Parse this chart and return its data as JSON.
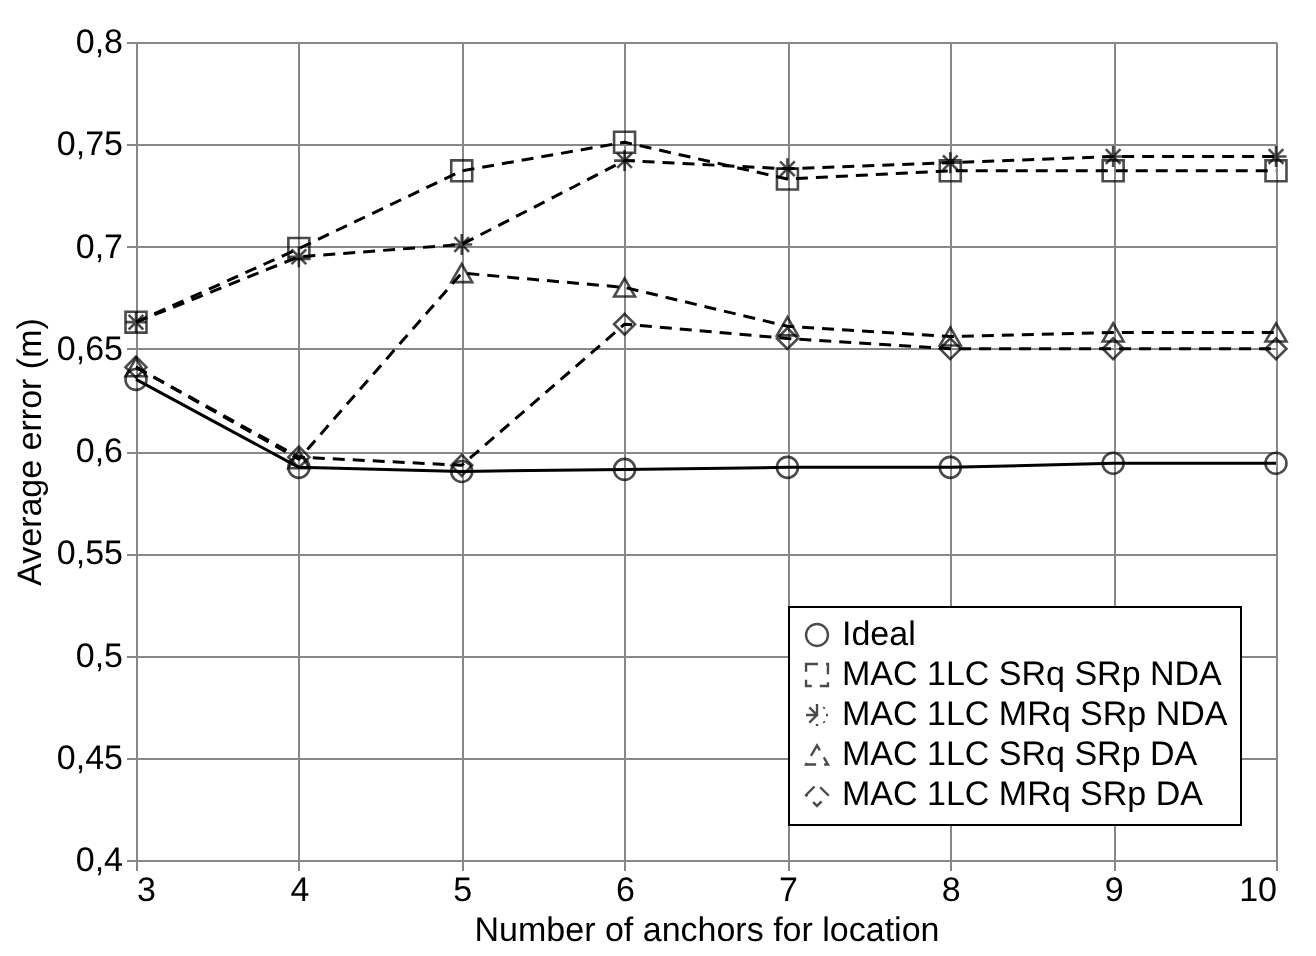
{
  "chart_data": {
    "type": "line",
    "xlabel": "Number of anchors for location",
    "ylabel": "Average error  (m)",
    "x": [
      3,
      4,
      5,
      6,
      7,
      8,
      9,
      10
    ],
    "xlim": [
      3,
      10
    ],
    "xticks": [
      3,
      4,
      5,
      6,
      7,
      8,
      9,
      10
    ],
    "ylim": [
      0.4,
      0.8
    ],
    "yticks": [
      {
        "value": 0.4,
        "label": "0,4"
      },
      {
        "value": 0.45,
        "label": "0,45"
      },
      {
        "value": 0.5,
        "label": "0,5"
      },
      {
        "value": 0.55,
        "label": "0,55"
      },
      {
        "value": 0.6,
        "label": "0,6"
      },
      {
        "value": 0.65,
        "label": "0,65"
      },
      {
        "value": 0.7,
        "label": "0,7"
      },
      {
        "value": 0.75,
        "label": "0,75"
      },
      {
        "value": 0.8,
        "label": "0,8"
      }
    ],
    "grid": true,
    "legend": "bottom right",
    "series": [
      {
        "name": "Ideal",
        "color": "#000000",
        "line_style": "solid",
        "marker": "circle",
        "values": [
          0.635,
          0.592,
          0.59,
          0.591,
          0.592,
          0.592,
          0.594,
          0.594
        ]
      },
      {
        "name": "MAC 1LC SRq SRp NDA",
        "color": "#000000",
        "line_style": "dashed",
        "marker": "square",
        "values": [
          0.663,
          0.699,
          0.737,
          0.751,
          0.733,
          0.737,
          0.737,
          0.737
        ]
      },
      {
        "name": "MAC 1LC MRq SRp NDA",
        "color": "#000000",
        "line_style": "dashed",
        "marker": "cross",
        "values": [
          0.663,
          0.695,
          0.701,
          0.742,
          0.738,
          0.741,
          0.744,
          0.744
        ]
      },
      {
        "name": "MAC 1LC SRq SRp DA",
        "color": "#000000",
        "line_style": "dashed",
        "marker": "triangle",
        "values": [
          0.641,
          0.596,
          0.687,
          0.68,
          0.661,
          0.656,
          0.658,
          0.658
        ]
      },
      {
        "name": "MAC 1LC MRq SRp DA",
        "color": "#000000",
        "line_style": "dashed",
        "marker": "diamond",
        "values": [
          0.641,
          0.597,
          0.593,
          0.662,
          0.655,
          0.65,
          0.65,
          0.65
        ]
      }
    ]
  }
}
